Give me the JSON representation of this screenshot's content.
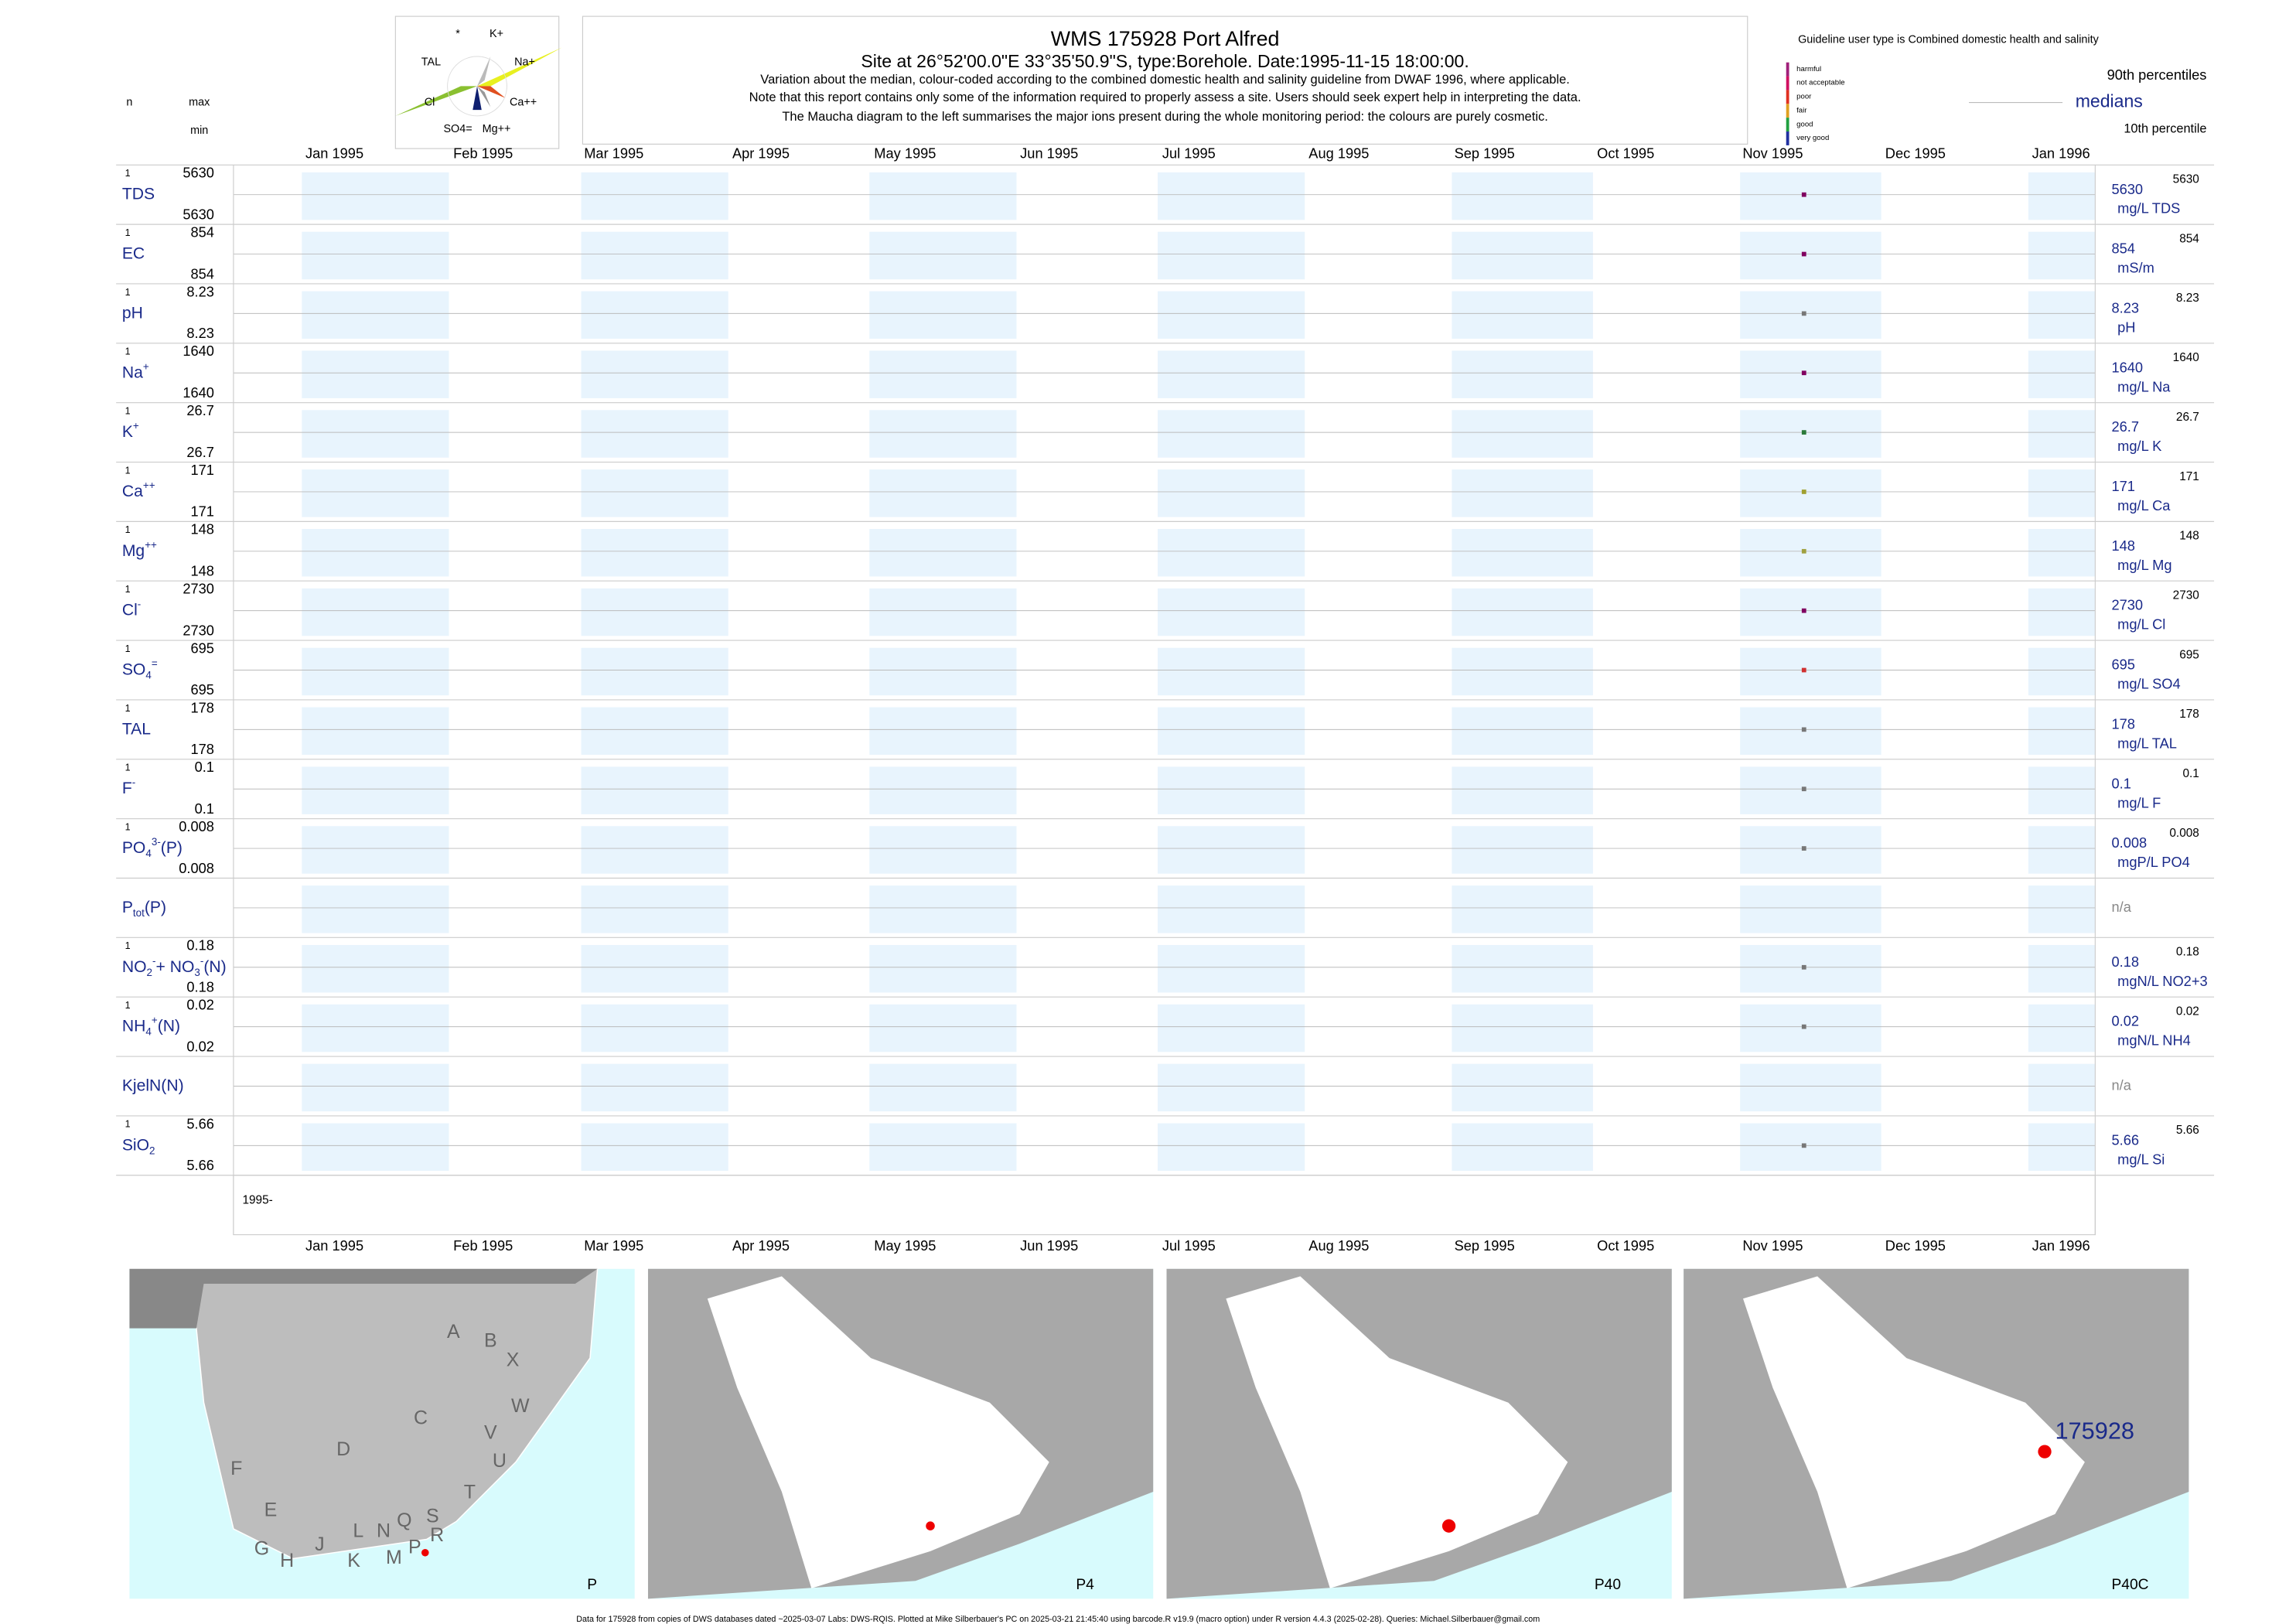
{
  "header": {
    "n": "n",
    "max": "max",
    "min": "min",
    "title": "WMS 175928  Port Alfred",
    "site": "Site at 26°52'00.0\"E 33°35'50.9\"S, type:Borehole. Date:1995-11-15 18:00:00.",
    "notes": [
      "Variation about the median,  colour-coded according to the combined domestic health and salinity guideline from DWAF 1996, where applicable.",
      "Note that this report contains only some of the information required to properly assess a site. Users should seek expert help in interpreting the data.",
      "The Maucha diagram to the left summarises the major ions present during the whole monitoring period: the colours are purely cosmetic."
    ]
  },
  "maucha": {
    "labels": [
      "*",
      "K+",
      "TAL",
      "Na+",
      "Cl",
      "Ca++",
      "SO4=",
      "Mg++"
    ]
  },
  "guideline": {
    "text": "Guideline user type is Combined domestic health and salinity",
    "levels": [
      {
        "label": "harmful",
        "color": "#a0207a"
      },
      {
        "label": "not acceptable",
        "color": "#d01060"
      },
      {
        "label": "poor",
        "color": "#e03020"
      },
      {
        "label": "fair",
        "color": "#e0a020"
      },
      {
        "label": "good",
        "color": "#20a040"
      },
      {
        "label": "very good",
        "color": "#2030a0"
      }
    ],
    "p90": "90th percentiles",
    "median": "medians",
    "p10": "10th percentile"
  },
  "months": [
    "Jan 1995",
    "Feb 1995",
    "Mar 1995",
    "Apr 1995",
    "May 1995",
    "Jun 1995",
    "Jul 1995",
    "Aug 1995",
    "Sep 1995",
    "Oct 1995",
    "Nov 1995",
    "Dec 1995",
    "Jan 1996"
  ],
  "rows": [
    {
      "name": [
        [
          "TDS",
          ""
        ]
      ],
      "n": 1,
      "value": 5630,
      "unit": "mg/L TDS",
      "color": "#800060"
    },
    {
      "name": [
        [
          "EC",
          ""
        ]
      ],
      "n": 1,
      "value": 854,
      "unit": "mS/m",
      "color": "#800060"
    },
    {
      "name": [
        [
          "pH",
          ""
        ]
      ],
      "n": 1,
      "value": 8.23,
      "unit": "pH",
      "color": "#777777"
    },
    {
      "name": [
        [
          "Na",
          ""
        ],
        [
          "+",
          "sup"
        ]
      ],
      "n": 1,
      "value": 1640,
      "unit": "mg/L Na",
      "color": "#800060"
    },
    {
      "name": [
        [
          "K",
          ""
        ],
        [
          "+",
          "sup"
        ]
      ],
      "n": 1,
      "value": 26.7,
      "unit": "mg/L K",
      "color": "#2a7a3a"
    },
    {
      "name": [
        [
          "Ca",
          ""
        ],
        [
          "++",
          "sup"
        ]
      ],
      "n": 1,
      "value": 171,
      "unit": "mg/L Ca",
      "color": "#a0a030"
    },
    {
      "name": [
        [
          "Mg",
          ""
        ],
        [
          "++",
          "sup"
        ]
      ],
      "n": 1,
      "value": 148,
      "unit": "mg/L Mg",
      "color": "#a0a040"
    },
    {
      "name": [
        [
          "Cl",
          ""
        ],
        [
          "-",
          "sup"
        ]
      ],
      "n": 1,
      "value": 2730,
      "unit": "mg/L Cl",
      "color": "#800060"
    },
    {
      "name": [
        [
          "SO",
          ""
        ],
        [
          "4",
          "sub"
        ],
        [
          "=",
          "sup"
        ]
      ],
      "n": 1,
      "value": 695,
      "unit": "mg/L SO4",
      "color": "#d03030"
    },
    {
      "name": [
        [
          "TAL",
          ""
        ]
      ],
      "n": 1,
      "value": 178,
      "unit": "mg/L TAL",
      "color": "#777777"
    },
    {
      "name": [
        [
          "F",
          ""
        ],
        [
          "-",
          "sup"
        ]
      ],
      "n": 1,
      "value": 0.1,
      "unit": "mg/L F",
      "color": "#777777"
    },
    {
      "name": [
        [
          "PO",
          ""
        ],
        [
          "4",
          "sub"
        ],
        [
          "3-",
          "sup"
        ],
        [
          "(P)",
          ""
        ]
      ],
      "n": 1,
      "value": 0.008,
      "unit": "mgP/L PO4",
      "color": "#777777"
    },
    {
      "name": [
        [
          "P",
          ""
        ],
        [
          "tot",
          "sub"
        ],
        [
          "(P)",
          ""
        ]
      ],
      "na": "n/a"
    },
    {
      "name": [
        [
          "NO",
          ""
        ],
        [
          "2",
          "sub"
        ],
        [
          "-",
          "sup"
        ],
        [
          "+ NO",
          ""
        ],
        [
          "3",
          "sub"
        ],
        [
          "-",
          "sup"
        ],
        [
          "(N)",
          ""
        ]
      ],
      "n": 1,
      "value": 0.18,
      "unit": "mgN/L NO2+3",
      "color": "#777777"
    },
    {
      "name": [
        [
          "NH",
          ""
        ],
        [
          "4",
          "sub"
        ],
        [
          "+",
          "sup"
        ],
        [
          "(N)",
          ""
        ]
      ],
      "n": 1,
      "value": 0.02,
      "unit": "mgN/L NH4",
      "color": "#777777"
    },
    {
      "name": [
        [
          "KjelN(N)",
          ""
        ]
      ],
      "na": "n/a"
    },
    {
      "name": [
        [
          "SiO",
          ""
        ],
        [
          "2",
          "sub"
        ]
      ],
      "n": 1,
      "value": 5.66,
      "unit": "mg/L Si",
      "color": "#777777"
    }
  ],
  "year_label": "1995-",
  "maps": [
    {
      "label": "P",
      "letters": [
        "A",
        "B",
        "X",
        "W",
        "C",
        "V",
        "U",
        "D",
        "F",
        "T",
        "E",
        "S",
        "Q",
        "N",
        "L",
        "R",
        "P",
        "M",
        "K",
        "J",
        "H",
        "G"
      ]
    },
    {
      "label": "P4"
    },
    {
      "label": "P40"
    },
    {
      "label": "P40C",
      "station": "175928"
    }
  ],
  "footer": "Data for 175928 from copies of DWS databases dated ~2025-03-07 Labs: DWS-RQIS. Plotted at Mike Silberbauer's PC on 2025-03-21 21:45:40 using barcode.R v19.9 (macro option) under R version 4.4.3 (2025-02-28). Queries: Michael.Silberbauer@gmail.com"
}
